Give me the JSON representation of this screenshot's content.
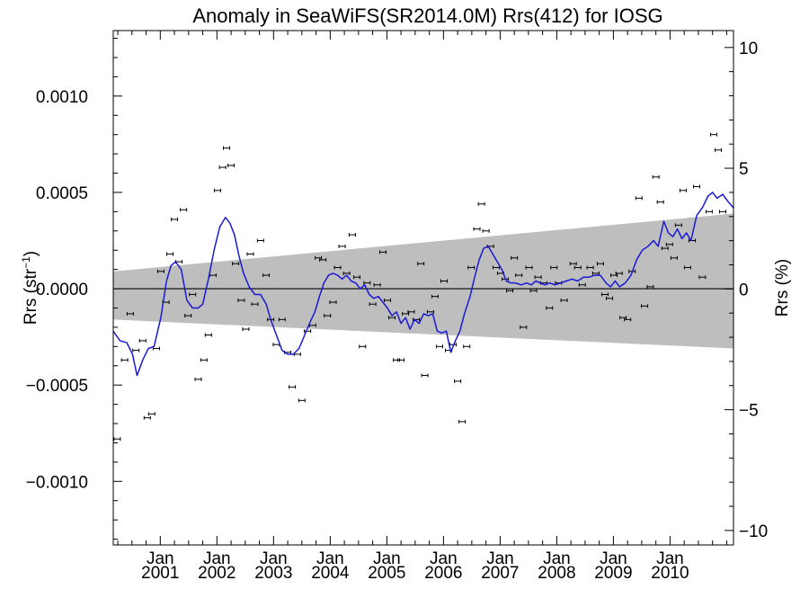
{
  "chart_data": {
    "type": "scatter",
    "title": "Anomaly in SeaWiFS(SR2014.0M) Rrs(412) for IOSG",
    "ylabel_left": "Rrs (str",
    "ylabel_left_sup": "−1",
    "ylabel_left_close": ")",
    "ylabel_right": "Rrs (%)",
    "xlabel": "",
    "x_range": [
      2000.0,
      2010.95
    ],
    "ylim": [
      -0.00133,
      0.00134
    ],
    "ylim_right": [
      -10.6,
      10.7
    ],
    "grid": false,
    "zero_line": true,
    "colors": {
      "points": "#000000",
      "line": "#1a1ad6",
      "band": "#bebebe"
    },
    "y_ticks": [
      {
        "v": 0.001,
        "label": "0.0010"
      },
      {
        "v": 0.0005,
        "label": "0.0005"
      },
      {
        "v": 0.0,
        "label": "0.0000"
      },
      {
        "v": -0.0005,
        "label": "−0.0005"
      },
      {
        "v": -0.001,
        "label": "−0.0010"
      }
    ],
    "y_ticks_right": [
      {
        "v": 10,
        "label": "10"
      },
      {
        "v": 5,
        "label": "5"
      },
      {
        "v": 0,
        "label": "0"
      },
      {
        "v": -5,
        "label": "−5"
      },
      {
        "v": -10,
        "label": "−10"
      }
    ],
    "x_ticks": [
      {
        "x": 2000.83,
        "month": "Jan",
        "year": "2001"
      },
      {
        "x": 2001.83,
        "month": "Jan",
        "year": "2002"
      },
      {
        "x": 2002.83,
        "month": "Jan",
        "year": "2003"
      },
      {
        "x": 2003.83,
        "month": "Jan",
        "year": "2004"
      },
      {
        "x": 2004.83,
        "month": "Jan",
        "year": "2005"
      },
      {
        "x": 2005.83,
        "month": "Jan",
        "year": "2006"
      },
      {
        "x": 2006.83,
        "month": "Jan",
        "year": "2007"
      },
      {
        "x": 2007.83,
        "month": "Jan",
        "year": "2008"
      },
      {
        "x": 2008.83,
        "month": "Jan",
        "year": "2009"
      },
      {
        "x": 2009.83,
        "month": "Jan",
        "year": "2010"
      }
    ],
    "band": {
      "upper": [
        [
          2000.0,
          9e-05
        ],
        [
          2010.95,
          0.00039
        ]
      ],
      "lower": [
        [
          2000.0,
          -0.00016
        ],
        [
          2010.95,
          -0.00031
        ]
      ]
    },
    "points": [
      [
        2000.07,
        -0.00078
      ],
      [
        2000.2,
        -0.00037
      ],
      [
        2000.3,
        -0.00013
      ],
      [
        2000.4,
        -0.00032
      ],
      [
        2000.52,
        -0.00027
      ],
      [
        2000.6,
        -0.00067
      ],
      [
        2000.68,
        -0.00065
      ],
      [
        2000.76,
        -0.00031
      ],
      [
        2000.84,
        9e-05
      ],
      [
        2000.93,
        -7e-05
      ],
      [
        2001.0,
        0.00018
      ],
      [
        2001.08,
        0.00036
      ],
      [
        2001.16,
        0.00014
      ],
      [
        2001.24,
        0.00041
      ],
      [
        2001.32,
        -0.00014
      ],
      [
        2001.4,
        -3e-05
      ],
      [
        2001.5,
        -0.00047
      ],
      [
        2001.6,
        -0.00037
      ],
      [
        2001.68,
        -0.00024
      ],
      [
        2001.76,
        7e-05
      ],
      [
        2001.84,
        0.00051
      ],
      [
        2001.93,
        0.00063
      ],
      [
        2002.0,
        0.00073
      ],
      [
        2002.08,
        0.00064
      ],
      [
        2002.16,
        0.00013
      ],
      [
        2002.26,
        -6e-05
      ],
      [
        2002.34,
        -0.00021
      ],
      [
        2002.42,
        0.00018
      ],
      [
        2002.5,
        -8e-05
      ],
      [
        2002.6,
        0.00025
      ],
      [
        2002.7,
        7e-05
      ],
      [
        2002.78,
        -0.00016
      ],
      [
        2002.88,
        -0.00029
      ],
      [
        2002.98,
        -0.00016
      ],
      [
        2003.08,
        -0.00033
      ],
      [
        2003.16,
        -0.00051
      ],
      [
        2003.25,
        -0.00034
      ],
      [
        2003.33,
        -0.00058
      ],
      [
        2003.43,
        -0.00022
      ],
      [
        2003.52,
        -0.00019
      ],
      [
        2003.62,
        0.00016
      ],
      [
        2003.7,
        0.00015
      ],
      [
        2003.78,
        -0.00014
      ],
      [
        2003.88,
        -7e-05
      ],
      [
        2003.96,
        0.00011
      ],
      [
        2004.04,
        0.00022
      ],
      [
        2004.12,
        8e-05
      ],
      [
        2004.22,
        0.00028
      ],
      [
        2004.3,
        6e-05
      ],
      [
        2004.4,
        -0.0003
      ],
      [
        2004.48,
        3e-05
      ],
      [
        2004.58,
        -8e-05
      ],
      [
        2004.66,
        2e-05
      ],
      [
        2004.76,
        0.00019
      ],
      [
        2004.84,
        -6e-05
      ],
      [
        2004.92,
        -0.00015
      ],
      [
        2005.0,
        -0.00037
      ],
      [
        2005.08,
        -0.00037
      ],
      [
        2005.16,
        -0.00013
      ],
      [
        2005.26,
        -0.00012
      ],
      [
        2005.35,
        -0.00016
      ],
      [
        2005.43,
        0.00013
      ],
      [
        2005.5,
        -0.00045
      ],
      [
        2005.6,
        -0.00012
      ],
      [
        2005.68,
        -4e-05
      ],
      [
        2005.76,
        -0.0003
      ],
      [
        2005.84,
        4e-05
      ],
      [
        2005.92,
        -0.00032
      ],
      [
        2006.0,
        -0.00029
      ],
      [
        2006.08,
        -0.00048
      ],
      [
        2006.16,
        -0.00069
      ],
      [
        2006.24,
        -0.0003
      ],
      [
        2006.32,
        0.00011
      ],
      [
        2006.42,
        0.00031
      ],
      [
        2006.5,
        0.00044
      ],
      [
        2006.58,
        0.0003
      ],
      [
        2006.66,
        0.00022
      ],
      [
        2006.76,
        0.00011
      ],
      [
        2006.84,
        8e-05
      ],
      [
        2006.92,
        5e-05
      ],
      [
        2007.0,
        -1e-05
      ],
      [
        2007.08,
        0.00016
      ],
      [
        2007.16,
        7e-05
      ],
      [
        2007.24,
        -0.0002
      ],
      [
        2007.34,
        0.00011
      ],
      [
        2007.42,
        -1e-05
      ],
      [
        2007.5,
        6e-05
      ],
      [
        2007.6,
        3e-05
      ],
      [
        2007.7,
        -0.0001
      ],
      [
        2007.78,
        0.00011
      ],
      [
        2007.86,
        3e-05
      ],
      [
        2007.96,
        -6e-05
      ],
      [
        2008.12,
        0.00013
      ],
      [
        2008.2,
        0.00011
      ],
      [
        2008.28,
        2e-05
      ],
      [
        2008.42,
        0.00011
      ],
      [
        2008.52,
        8e-05
      ],
      [
        2008.6,
        0.00013
      ],
      [
        2008.68,
        -3e-05
      ],
      [
        2008.76,
        -5e-05
      ],
      [
        2008.84,
        7e-05
      ],
      [
        2008.93,
        8e-05
      ],
      [
        2009.0,
        -0.00015
      ],
      [
        2009.08,
        -0.00016
      ],
      [
        2009.16,
        9e-05
      ],
      [
        2009.28,
        0.00047
      ],
      [
        2009.38,
        -9e-05
      ],
      [
        2009.48,
        1e-05
      ],
      [
        2009.58,
        0.00058
      ],
      [
        2009.66,
        0.00045
      ],
      [
        2009.74,
        0.00021
      ],
      [
        2009.82,
        0.00023
      ],
      [
        2009.9,
        0.00016
      ],
      [
        2009.98,
        0.00033
      ],
      [
        2010.06,
        0.00051
      ],
      [
        2010.14,
        0.00011
      ],
      [
        2010.22,
        0.00025
      ],
      [
        2010.3,
        0.00053
      ],
      [
        2010.4,
        6e-05
      ],
      [
        2010.52,
        0.0004
      ],
      [
        2010.6,
        0.0008
      ],
      [
        2010.68,
        0.00072
      ],
      [
        2010.76,
        0.0004
      ]
    ],
    "trend_line": [
      [
        2000.0,
        -0.00022
      ],
      [
        2000.12,
        -0.00027
      ],
      [
        2000.24,
        -0.00028
      ],
      [
        2000.34,
        -0.00034
      ],
      [
        2000.42,
        -0.00045
      ],
      [
        2000.52,
        -0.00037
      ],
      [
        2000.62,
        -0.00031
      ],
      [
        2000.72,
        -0.0003
      ],
      [
        2000.84,
        -0.00015
      ],
      [
        2000.94,
        4e-05
      ],
      [
        2001.02,
        0.00012
      ],
      [
        2001.1,
        0.00014
      ],
      [
        2001.2,
        0.0001
      ],
      [
        2001.3,
        -6e-05
      ],
      [
        2001.4,
        -0.0001
      ],
      [
        2001.5,
        -0.0001
      ],
      [
        2001.58,
        -8e-05
      ],
      [
        2001.68,
        5e-05
      ],
      [
        2001.78,
        0.0002
      ],
      [
        2001.88,
        0.00032
      ],
      [
        2001.98,
        0.00037
      ],
      [
        2002.06,
        0.00034
      ],
      [
        2002.14,
        0.00028
      ],
      [
        2002.22,
        0.00017
      ],
      [
        2002.3,
        8e-05
      ],
      [
        2002.4,
        1e-05
      ],
      [
        2002.5,
        -3e-05
      ],
      [
        2002.6,
        -3e-05
      ],
      [
        2002.7,
        -8e-05
      ],
      [
        2002.78,
        -0.00016
      ],
      [
        2002.88,
        -0.00024
      ],
      [
        2002.98,
        -0.00032
      ],
      [
        2003.08,
        -0.00034
      ],
      [
        2003.18,
        -0.00034
      ],
      [
        2003.28,
        -0.00031
      ],
      [
        2003.38,
        -0.00024
      ],
      [
        2003.48,
        -0.00017
      ],
      [
        2003.56,
        -0.00012
      ],
      [
        2003.64,
        -4e-05
      ],
      [
        2003.72,
        3e-05
      ],
      [
        2003.8,
        7e-05
      ],
      [
        2003.88,
        8e-05
      ],
      [
        2003.96,
        7e-05
      ],
      [
        2004.04,
        5e-05
      ],
      [
        2004.12,
        7e-05
      ],
      [
        2004.2,
        4e-05
      ],
      [
        2004.28,
        3e-05
      ],
      [
        2004.36,
        0.0
      ],
      [
        2004.44,
        2e-05
      ],
      [
        2004.52,
        -3e-05
      ],
      [
        2004.6,
        -5e-05
      ],
      [
        2004.68,
        -4e-05
      ],
      [
        2004.76,
        -7e-05
      ],
      [
        2004.84,
        -0.0001
      ],
      [
        2004.92,
        -0.00014
      ],
      [
        2005.0,
        -0.00012
      ],
      [
        2005.08,
        -0.00018
      ],
      [
        2005.16,
        -0.00015
      ],
      [
        2005.24,
        -0.00021
      ],
      [
        2005.32,
        -0.00016
      ],
      [
        2005.4,
        -0.00018
      ],
      [
        2005.48,
        -0.00013
      ],
      [
        2005.56,
        -0.00014
      ],
      [
        2005.64,
        -0.00013
      ],
      [
        2005.72,
        -0.00022
      ],
      [
        2005.8,
        -0.00023
      ],
      [
        2005.88,
        -0.00022
      ],
      [
        2005.96,
        -0.00033
      ],
      [
        2006.04,
        -0.00027
      ],
      [
        2006.12,
        -0.00022
      ],
      [
        2006.2,
        -0.00013
      ],
      [
        2006.3,
        -4e-05
      ],
      [
        2006.38,
        6e-05
      ],
      [
        2006.46,
        0.00015
      ],
      [
        2006.54,
        0.00021
      ],
      [
        2006.62,
        0.00022
      ],
      [
        2006.7,
        0.00018
      ],
      [
        2006.78,
        0.00014
      ],
      [
        2006.86,
        0.0001
      ],
      [
        2006.94,
        4e-05
      ],
      [
        2007.02,
        3e-05
      ],
      [
        2007.1,
        3e-05
      ],
      [
        2007.2,
        2e-05
      ],
      [
        2007.3,
        3e-05
      ],
      [
        2007.38,
        2e-05
      ],
      [
        2007.46,
        4e-05
      ],
      [
        2007.54,
        3e-05
      ],
      [
        2007.62,
        2e-05
      ],
      [
        2007.7,
        3e-05
      ],
      [
        2007.8,
        2e-05
      ],
      [
        2007.9,
        3e-05
      ],
      [
        2008.0,
        4e-05
      ],
      [
        2008.1,
        5e-05
      ],
      [
        2008.2,
        4e-05
      ],
      [
        2008.3,
        6e-05
      ],
      [
        2008.4,
        6e-05
      ],
      [
        2008.5,
        7e-05
      ],
      [
        2008.6,
        7e-05
      ],
      [
        2008.7,
        3e-05
      ],
      [
        2008.78,
        1e-05
      ],
      [
        2008.86,
        4e-05
      ],
      [
        2008.94,
        1e-05
      ],
      [
        2009.04,
        3e-05
      ],
      [
        2009.14,
        7e-05
      ],
      [
        2009.24,
        0.00015
      ],
      [
        2009.34,
        0.0002
      ],
      [
        2009.44,
        0.00022
      ],
      [
        2009.54,
        0.00025
      ],
      [
        2009.62,
        0.00022
      ],
      [
        2009.72,
        0.00035
      ],
      [
        2009.8,
        0.00029
      ],
      [
        2009.88,
        0.00027
      ],
      [
        2009.96,
        0.00031
      ],
      [
        2010.04,
        0.00026
      ],
      [
        2010.12,
        0.00029
      ],
      [
        2010.2,
        0.00025
      ],
      [
        2010.3,
        0.00038
      ],
      [
        2010.4,
        0.00042
      ],
      [
        2010.5,
        0.00048
      ],
      [
        2010.58,
        0.0005
      ],
      [
        2010.66,
        0.00047
      ],
      [
        2010.76,
        0.00049
      ],
      [
        2010.86,
        0.00045
      ],
      [
        2010.95,
        0.00042
      ]
    ]
  }
}
